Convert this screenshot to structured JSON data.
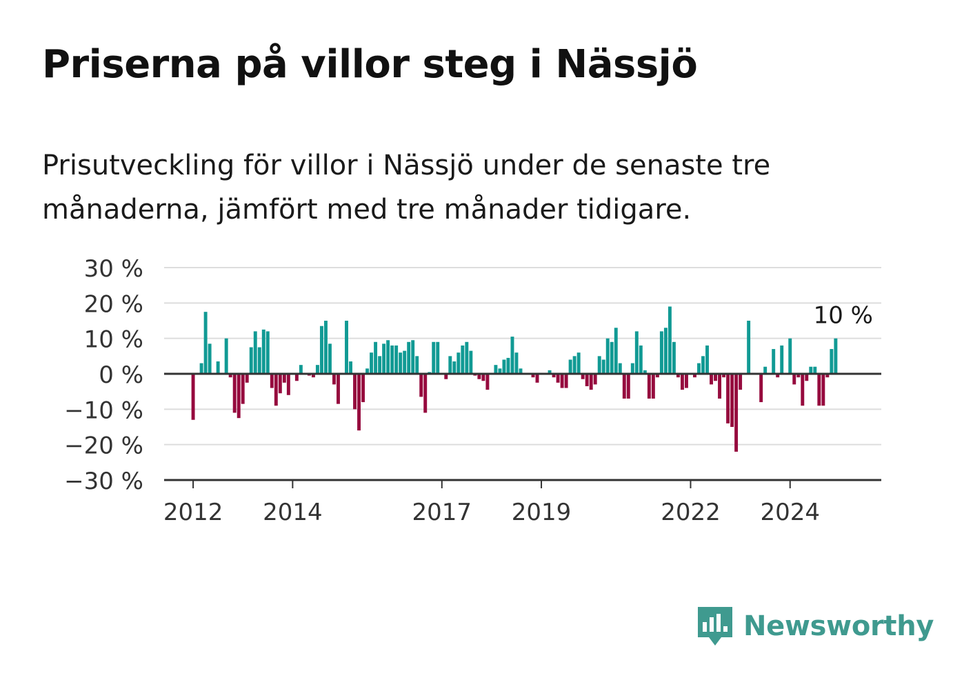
{
  "title": "Priserna på villor steg i Nässjö",
  "subtitle": "Prisutveckling för villor i Nässjö under de senaste tre månaderna, jämfört med tre månader tidigare.",
  "brand": {
    "name": "Newsworthy",
    "color": "#3f9a8f",
    "icon": "newsworthy-bar-chart-icon"
  },
  "colors": {
    "positive": "#119a94",
    "negative": "#960a3e",
    "grid": "#dddddd",
    "axis": "#333333"
  },
  "chart_data": {
    "type": "bar",
    "x_type": "month",
    "x_start": "2012-01",
    "xlim": [
      "2011-06",
      "2025-11"
    ],
    "ylim": [
      -30,
      30
    ],
    "y_ticks": [
      30,
      20,
      10,
      0,
      -10,
      -20,
      -30
    ],
    "y_tick_labels": [
      "30 %",
      "20 %",
      "10 %",
      "0 %",
      "−10 %",
      "−20 %",
      "−30 %"
    ],
    "x_ticks": [
      "2012-01",
      "2014-01",
      "2017-01",
      "2019-01",
      "2022-01",
      "2024-01"
    ],
    "x_tick_labels": [
      "2012",
      "2014",
      "2017",
      "2019",
      "2022",
      "2024"
    ],
    "grid": true,
    "values": [
      -13,
      0,
      3,
      17.5,
      8.5,
      0,
      3.5,
      0,
      10,
      -1,
      -11,
      -12.5,
      -8.5,
      -2.5,
      7.5,
      12,
      7.5,
      12.5,
      12,
      -4,
      -9,
      -5.5,
      -2.5,
      -6,
      0,
      -2,
      2.5,
      0,
      -0.5,
      -1,
      2.5,
      13.5,
      15,
      8.5,
      -3,
      -8.5,
      0,
      15,
      3.5,
      -10,
      -16,
      -8,
      1.5,
      6,
      9,
      5,
      8.5,
      9.5,
      8,
      8,
      6,
      6.5,
      9,
      9.5,
      5,
      -6.5,
      -11,
      0.5,
      9,
      9,
      0,
      -1.5,
      5,
      3.5,
      6,
      8,
      9,
      6.5,
      -0.5,
      -1.5,
      -2,
      -4.5,
      0,
      2.5,
      1.5,
      4,
      4.5,
      10.5,
      6,
      1.5,
      0,
      0,
      -1,
      -2.5,
      0,
      0,
      1,
      -1,
      -2.5,
      -4,
      -4,
      4,
      5,
      6,
      -1.5,
      -3.5,
      -4.5,
      -3,
      5,
      4,
      10,
      9,
      13,
      3,
      -7,
      -7,
      3,
      12,
      8,
      1,
      -7,
      -7,
      -1,
      12,
      13,
      19,
      9,
      -1,
      -4.5,
      -4,
      0,
      -1,
      3,
      5,
      8,
      -3,
      -2,
      -7,
      -1,
      -14,
      -15,
      -22,
      -4.5,
      0,
      15,
      0,
      0,
      -8,
      2,
      0,
      7,
      -1,
      8,
      0,
      10,
      -3,
      -1,
      -9,
      -2,
      2,
      2,
      -9,
      -9,
      -1,
      7,
      10
    ],
    "annotation": "10 %"
  }
}
